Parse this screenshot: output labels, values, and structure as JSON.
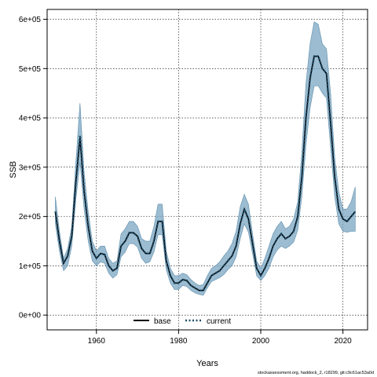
{
  "chart_data": {
    "type": "line",
    "xlabel": "Years",
    "ylabel": "SSB",
    "xlim": [
      1948,
      2026
    ],
    "ylim": [
      -30000,
      620000
    ],
    "x_ticks": [
      1960,
      1980,
      2000,
      2020
    ],
    "x_tick_labels": [
      "1960",
      "1980",
      "2000",
      "2020"
    ],
    "y_ticks": [
      0,
      100000,
      200000,
      300000,
      400000,
      500000,
      600000
    ],
    "y_tick_labels": [
      "0e+00",
      "1e+05",
      "2e+05",
      "3e+05",
      "4e+05",
      "5e+05",
      "6e+05"
    ],
    "grid": true,
    "legend_placement": "bottom-center",
    "legend": [
      {
        "label": "base",
        "style": "solid",
        "color": "#000000"
      },
      {
        "label": "current",
        "style": "dotted",
        "color": "#1d4e6b"
      }
    ],
    "band_color": "#7aa6c2",
    "x": [
      1950,
      1951,
      1952,
      1953,
      1954,
      1955,
      1956,
      1957,
      1958,
      1959,
      1960,
      1961,
      1962,
      1963,
      1964,
      1965,
      1966,
      1967,
      1968,
      1969,
      1970,
      1971,
      1972,
      1973,
      1974,
      1975,
      1976,
      1977,
      1978,
      1979,
      1980,
      1981,
      1982,
      1983,
      1984,
      1985,
      1986,
      1987,
      1988,
      1989,
      1990,
      1991,
      1992,
      1993,
      1994,
      1995,
      1996,
      1997,
      1998,
      1999,
      2000,
      2001,
      2002,
      2003,
      2004,
      2005,
      2006,
      2007,
      2008,
      2009,
      2010,
      2011,
      2012,
      2013,
      2014,
      2015,
      2016,
      2017,
      2018,
      2019,
      2020,
      2021,
      2022,
      2023
    ],
    "series": [
      {
        "name": "base",
        "values": [
          210000,
          150000,
          105000,
          120000,
          160000,
          270000,
          360000,
          250000,
          180000,
          130000,
          115000,
          125000,
          123000,
          100000,
          90000,
          95000,
          140000,
          150000,
          167000,
          167000,
          160000,
          135000,
          125000,
          125000,
          150000,
          190000,
          190000,
          110000,
          80000,
          65000,
          65000,
          72000,
          70000,
          60000,
          55000,
          50000,
          50000,
          65000,
          80000,
          85000,
          90000,
          100000,
          110000,
          120000,
          140000,
          185000,
          215000,
          195000,
          145000,
          95000,
          80000,
          95000,
          115000,
          140000,
          155000,
          165000,
          155000,
          160000,
          170000,
          200000,
          280000,
          400000,
          480000,
          525000,
          525000,
          500000,
          490000,
          390000,
          280000,
          215000,
          195000,
          190000,
          200000,
          210000
        ]
      },
      {
        "name": "current",
        "values": [
          210000,
          150000,
          105000,
          120000,
          160000,
          270000,
          365000,
          255000,
          180000,
          130000,
          115000,
          125000,
          123000,
          100000,
          90000,
          95000,
          140000,
          150000,
          167000,
          167000,
          160000,
          135000,
          125000,
          125000,
          150000,
          190000,
          190000,
          110000,
          80000,
          65000,
          65000,
          72000,
          70000,
          60000,
          55000,
          50000,
          50000,
          65000,
          80000,
          85000,
          90000,
          100000,
          110000,
          120000,
          140000,
          185000,
          215000,
          195000,
          145000,
          95000,
          80000,
          95000,
          115000,
          140000,
          155000,
          165000,
          155000,
          160000,
          170000,
          200000,
          280000,
          400000,
          480000,
          525000,
          525000,
          500000,
          490000,
          390000,
          280000,
          215000,
          195000,
          190000,
          200000,
          210000
        ]
      }
    ],
    "band_upper": [
      240000,
      170000,
      115000,
      135000,
      180000,
      310000,
      430000,
      290000,
      210000,
      150000,
      130000,
      140000,
      140000,
      115000,
      105000,
      110000,
      165000,
      175000,
      190000,
      190000,
      180000,
      155000,
      150000,
      150000,
      180000,
      225000,
      225000,
      130000,
      95000,
      80000,
      80000,
      85000,
      82000,
      72000,
      65000,
      60000,
      62000,
      80000,
      95000,
      100000,
      108000,
      120000,
      130000,
      145000,
      170000,
      220000,
      245000,
      225000,
      165000,
      110000,
      95000,
      115000,
      140000,
      165000,
      180000,
      190000,
      175000,
      180000,
      195000,
      230000,
      330000,
      470000,
      550000,
      595000,
      590000,
      550000,
      540000,
      450000,
      320000,
      250000,
      215000,
      215000,
      230000,
      260000
    ],
    "band_lower": [
      185000,
      130000,
      90000,
      100000,
      140000,
      235000,
      310000,
      215000,
      150000,
      110000,
      100000,
      108000,
      105000,
      85000,
      75000,
      82000,
      118000,
      128000,
      145000,
      145000,
      138000,
      115000,
      105000,
      108000,
      128000,
      163000,
      163000,
      92000,
      65000,
      52000,
      52000,
      60000,
      58000,
      50000,
      45000,
      42000,
      40000,
      55000,
      68000,
      72000,
      76000,
      82000,
      92000,
      100000,
      118000,
      155000,
      185000,
      168000,
      125000,
      80000,
      70000,
      80000,
      95000,
      118000,
      132000,
      140000,
      135000,
      140000,
      148000,
      172000,
      240000,
      345000,
      420000,
      465000,
      465000,
      450000,
      440000,
      340000,
      240000,
      185000,
      170000,
      168000,
      170000,
      170000
    ]
  },
  "footnote": "stockassessment.org, haddock_2, r18299, git:c9c61ac53a0d"
}
